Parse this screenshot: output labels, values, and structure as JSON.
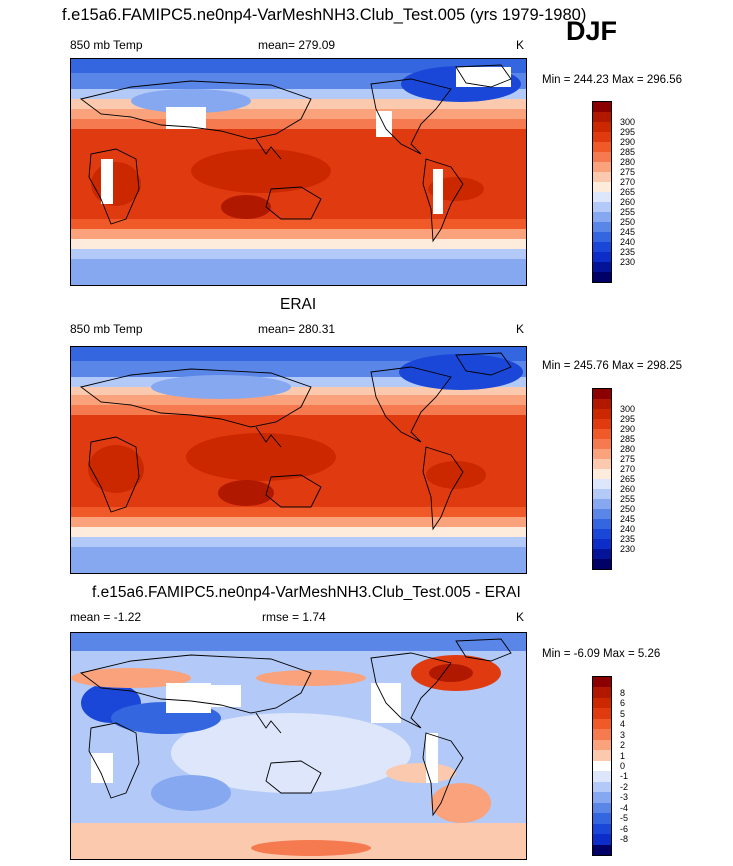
{
  "title": "f.e15a6.FAMIPC5.ne0np4-VarMeshNH3.Club_Test.005 (yrs 1979-1980)",
  "season": "DJF",
  "panels": [
    {
      "id": "model",
      "heading": "",
      "left_label": "850 mb Temp",
      "center_label": "mean= 279.09",
      "units": "K",
      "minmax": "Min = 244.23 Max = 296.56",
      "colorbar": {
        "labels": [
          "300",
          "295",
          "290",
          "285",
          "280",
          "275",
          "270",
          "265",
          "260",
          "255",
          "250",
          "245",
          "240",
          "235",
          "230"
        ],
        "colors": [
          "#8b0000",
          "#b01800",
          "#cc2800",
          "#e03b10",
          "#f05a28",
          "#f57a50",
          "#f9a27c",
          "#fbc9ad",
          "#fdebdc",
          "#dde6fb",
          "#b3c9f7",
          "#86a8f0",
          "#5a86e8",
          "#3466e0",
          "#1a47d8",
          "#0c2dc8",
          "#041499",
          "#000066"
        ]
      }
    },
    {
      "id": "obs",
      "heading": "ERAI",
      "left_label": "850 mb Temp",
      "center_label": "mean= 280.31",
      "units": "K",
      "minmax": "Min = 245.76 Max = 298.25",
      "colorbar": {
        "labels": [
          "300",
          "295",
          "290",
          "285",
          "280",
          "275",
          "270",
          "265",
          "260",
          "255",
          "250",
          "245",
          "240",
          "235",
          "230"
        ],
        "colors": [
          "#8b0000",
          "#b01800",
          "#cc2800",
          "#e03b10",
          "#f05a28",
          "#f57a50",
          "#f9a27c",
          "#fbc9ad",
          "#fdebdc",
          "#dde6fb",
          "#b3c9f7",
          "#86a8f0",
          "#5a86e8",
          "#3466e0",
          "#1a47d8",
          "#0c2dc8",
          "#041499",
          "#000066"
        ]
      }
    },
    {
      "id": "diff",
      "heading": "f.e15a6.FAMIPC5.ne0np4-VarMeshNH3.Club_Test.005 - ERAI",
      "left_label": "mean =  -1.22",
      "center_label": "rmse =   1.74",
      "units": "K",
      "minmax": "Min =  -6.09 Max =   5.26",
      "colorbar": {
        "labels": [
          "8",
          "6",
          "5",
          "4",
          "3",
          "2",
          "1",
          "0",
          "-1",
          "-2",
          "-3",
          "-4",
          "-5",
          "-6",
          "-8"
        ],
        "colors": [
          "#8b0000",
          "#b01800",
          "#cc2800",
          "#e03b10",
          "#f05a28",
          "#f57a50",
          "#f9a27c",
          "#fbc9ad",
          "#ffffff",
          "#dde6fb",
          "#b3c9f7",
          "#86a8f0",
          "#5a86e8",
          "#3466e0",
          "#1a47d8",
          "#0c2dc8",
          "#000066"
        ]
      }
    }
  ]
}
